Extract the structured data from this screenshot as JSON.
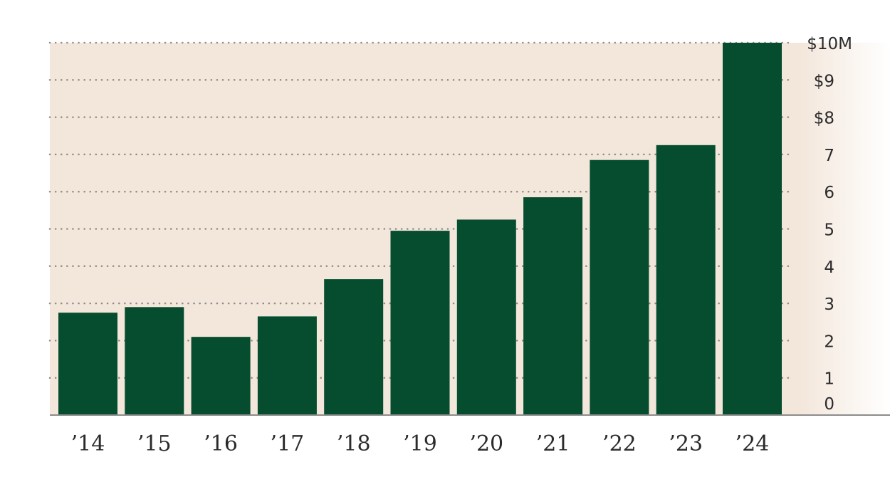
{
  "chart_data": {
    "type": "bar",
    "categories": [
      "’14",
      "’15",
      "’16",
      "’17",
      "’18",
      "’19",
      "’20",
      "’21",
      "’22",
      "’23",
      "’24"
    ],
    "values": [
      2.75,
      2.9,
      2.1,
      2.65,
      3.65,
      4.95,
      5.25,
      5.85,
      6.85,
      7.25,
      10.0
    ],
    "ylim": [
      0,
      10
    ],
    "y_ticks": [
      {
        "value": 0,
        "label": "0"
      },
      {
        "value": 1,
        "label": "1"
      },
      {
        "value": 2,
        "label": "2"
      },
      {
        "value": 3,
        "label": "3"
      },
      {
        "value": 4,
        "label": "4"
      },
      {
        "value": 5,
        "label": "5"
      },
      {
        "value": 6,
        "label": "6"
      },
      {
        "value": 7,
        "label": "7"
      },
      {
        "value": 8,
        "label": "$8"
      },
      {
        "value": 9,
        "label": "$9"
      },
      {
        "value": 10,
        "label": "$10M"
      }
    ],
    "y_axis_position": "right",
    "grid": true,
    "grid_style": "dotted",
    "title": "",
    "xlabel": "",
    "ylabel": ""
  },
  "colors": {
    "bar": "#054d2e",
    "background": "#f3e6da",
    "grid": "#8c8c8c",
    "baseline": "#8c8c8c",
    "text": "#2b2b2b"
  }
}
